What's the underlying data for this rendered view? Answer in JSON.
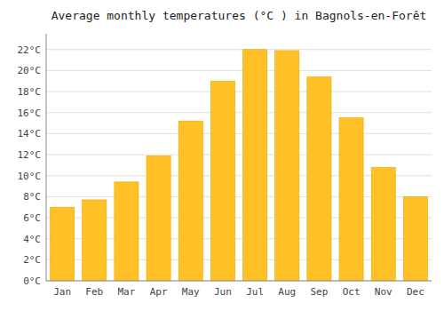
{
  "chart_data": {
    "type": "bar",
    "title": "Average monthly temperatures (°C ) in Bagnols-en-Forêt",
    "categories": [
      "Jan",
      "Feb",
      "Mar",
      "Apr",
      "May",
      "Jun",
      "Jul",
      "Aug",
      "Sep",
      "Oct",
      "Nov",
      "Dec"
    ],
    "values": [
      7.0,
      7.7,
      9.4,
      11.9,
      15.2,
      19.0,
      22.0,
      21.9,
      19.4,
      15.5,
      10.8,
      8.0
    ],
    "color": "#FFC125",
    "ylim": [
      0,
      23.5
    ],
    "yticks": [
      {
        "value": 0,
        "label": "0°C"
      },
      {
        "value": 2,
        "label": "2°C"
      },
      {
        "value": 4,
        "label": "4°C"
      },
      {
        "value": 6,
        "label": "6°C"
      },
      {
        "value": 8,
        "label": "8°C"
      },
      {
        "value": 10,
        "label": "10°C"
      },
      {
        "value": 12,
        "label": "12°C"
      },
      {
        "value": 14,
        "label": "14°C"
      },
      {
        "value": 16,
        "label": "16°C"
      },
      {
        "value": 18,
        "label": "18°C"
      },
      {
        "value": 20,
        "label": "20°C"
      },
      {
        "value": 22,
        "label": "22°C"
      }
    ],
    "grid": true
  }
}
